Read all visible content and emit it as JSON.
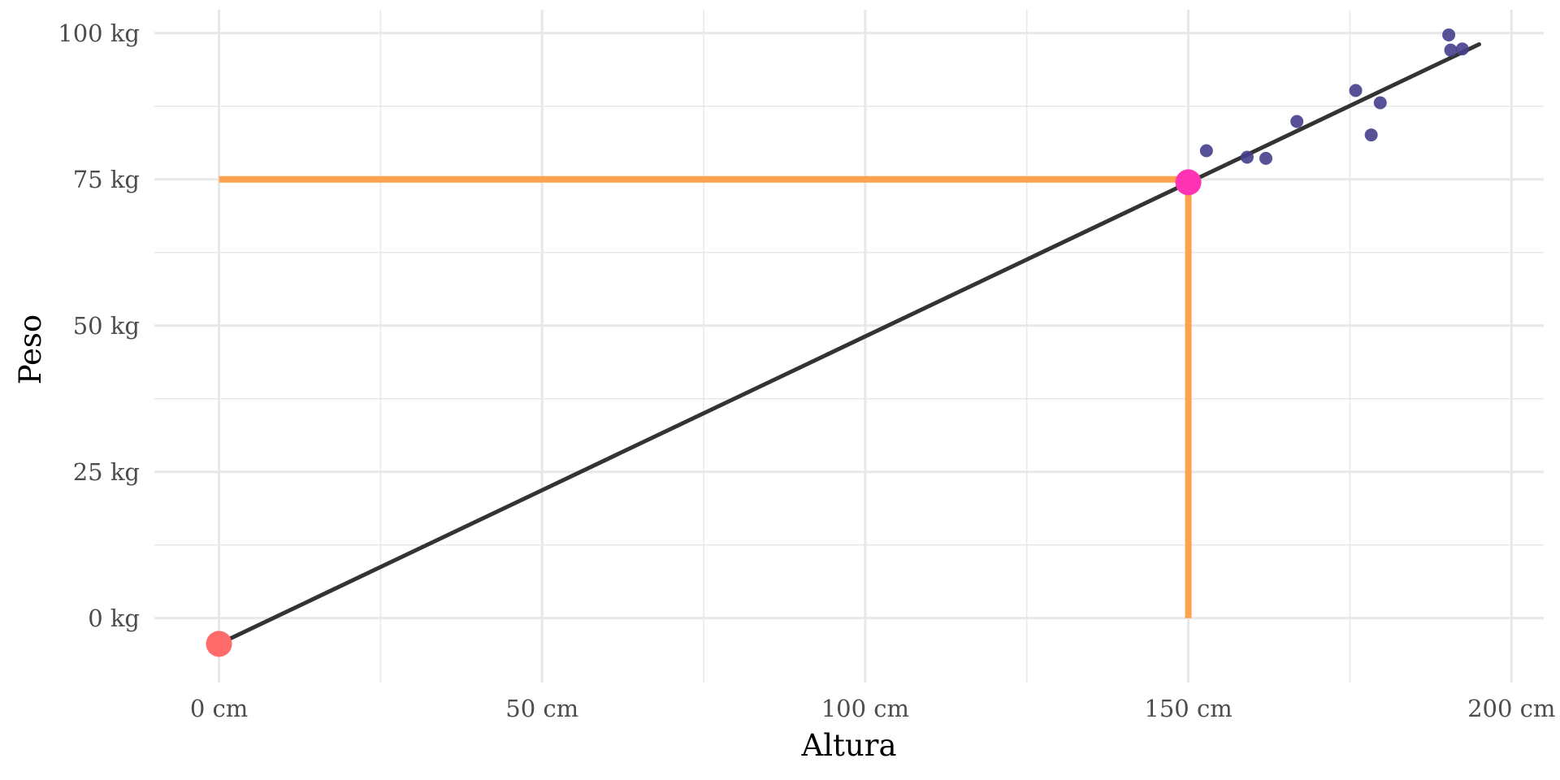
{
  "chart_data": {
    "type": "scatter",
    "title": "",
    "xlabel": "Altura",
    "ylabel": "Peso",
    "xlim": [
      -10,
      205
    ],
    "ylim": [
      -11,
      104
    ],
    "x_ticks": [
      {
        "value": 0,
        "label": "0 cm"
      },
      {
        "value": 50,
        "label": "50 cm"
      },
      {
        "value": 100,
        "label": "100 cm"
      },
      {
        "value": 150,
        "label": "150 cm"
      },
      {
        "value": 200,
        "label": "200 cm"
      }
    ],
    "y_ticks": [
      {
        "value": 0,
        "label": "0 kg"
      },
      {
        "value": 25,
        "label": "25 kg"
      },
      {
        "value": 50,
        "label": "50 kg"
      },
      {
        "value": 75,
        "label": "75 kg"
      },
      {
        "value": 100,
        "label": "100 kg"
      }
    ],
    "x_minor": [
      25,
      75,
      125,
      175
    ],
    "y_minor": [
      12.5,
      37.5,
      62.5,
      87.5
    ],
    "points": [
      {
        "x": 152.8,
        "y": 79.9
      },
      {
        "x": 159.1,
        "y": 78.8
      },
      {
        "x": 162.0,
        "y": 78.6
      },
      {
        "x": 166.8,
        "y": 84.9
      },
      {
        "x": 175.9,
        "y": 90.2
      },
      {
        "x": 178.3,
        "y": 82.6
      },
      {
        "x": 179.7,
        "y": 88.1
      },
      {
        "x": 190.3,
        "y": 99.7
      },
      {
        "x": 190.6,
        "y": 97.1
      },
      {
        "x": 192.4,
        "y": 97.3
      }
    ],
    "regression": {
      "intercept": -4.4,
      "slope": 0.5256,
      "x_start": 0,
      "x_end": 195
    },
    "intercept_point": {
      "x": 0,
      "y": -4.4
    },
    "prediction_point": {
      "x": 150,
      "y": 74.5
    },
    "guide_lines": {
      "x": 150,
      "y": 75
    },
    "colors": {
      "points": "#453f8c",
      "regression": "#333333",
      "guide": "#ffa24f",
      "intercept_point": "#ff6b6b",
      "prediction_point": "#ff33b4",
      "grid": "#e8e8e8"
    }
  }
}
